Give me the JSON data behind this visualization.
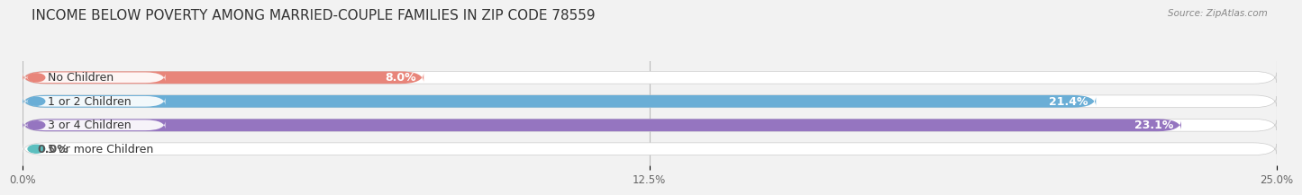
{
  "title": "INCOME BELOW POVERTY AMONG MARRIED-COUPLE FAMILIES IN ZIP CODE 78559",
  "source": "Source: ZipAtlas.com",
  "categories": [
    "No Children",
    "1 or 2 Children",
    "3 or 4 Children",
    "5 or more Children"
  ],
  "values": [
    8.0,
    21.4,
    23.1,
    0.0
  ],
  "bar_colors": [
    "#e8857a",
    "#6aaed6",
    "#9575c0",
    "#5bbfbf"
  ],
  "label_pill_colors": [
    "#e8857a",
    "#6aaed6",
    "#9575c0",
    "#5bbfbf"
  ],
  "background_color": "#f2f2f2",
  "bar_bg_color": "#e0e0e0",
  "xlim": [
    0,
    25.0
  ],
  "xticks": [
    0.0,
    12.5,
    25.0
  ],
  "xticklabels": [
    "0.0%",
    "12.5%",
    "25.0%"
  ],
  "title_fontsize": 11,
  "label_fontsize": 9,
  "value_fontsize": 9,
  "bar_height": 0.52,
  "value_color_dark": "#555555"
}
